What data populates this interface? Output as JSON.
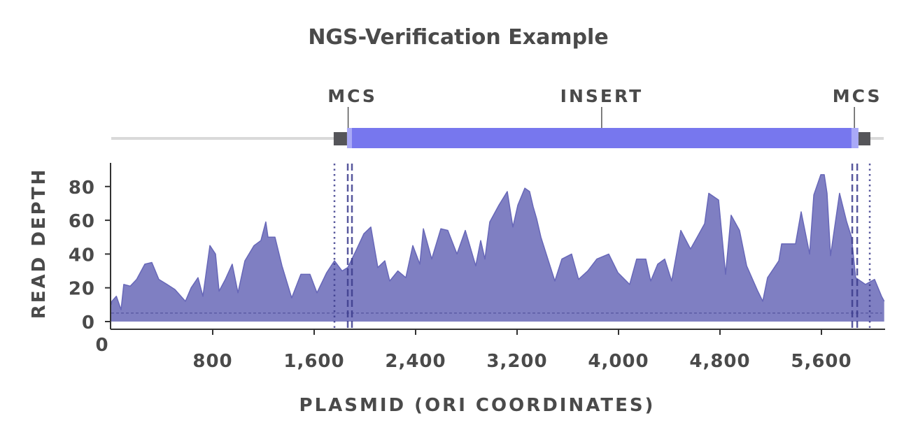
{
  "title": "NGS-Verification Example",
  "colors": {
    "text": "#4a4a4a",
    "insert": "#7777ee",
    "insert_edge": "#a9a9f7",
    "mcs_box": "#555559",
    "backbone": "#d9d9d9",
    "coverage_fill": "#7f7fc2",
    "coverage_line": "#6767b8",
    "marker": "#3c3c8c",
    "axis": "#333333"
  },
  "plasmid_map": {
    "features": [
      {
        "name": "MCS",
        "label": "MCS",
        "start": 1754,
        "end": 1859,
        "label_anchor_bp": 1868
      },
      {
        "name": "INSERT",
        "label": "INSERT",
        "start": 1898,
        "end": 5837,
        "label_anchor_bp": 3867
      },
      {
        "name": "MCS",
        "label": "MCS",
        "start": 5892,
        "end": 5986,
        "label_anchor_bp": 5860
      }
    ],
    "insert_edges": [
      [
        1859,
        1898
      ],
      [
        5837,
        5892
      ]
    ]
  },
  "chart_data": {
    "type": "area",
    "title": "NGS-Verification Example",
    "xlabel": "PLASMID (ORI COORDINATES)",
    "ylabel": "READ DEPTH",
    "xlim": [
      0,
      6100
    ],
    "ylim": [
      0,
      90
    ],
    "x_ticks": [
      0,
      800,
      1600,
      2400,
      3200,
      4000,
      4800,
      5600
    ],
    "x_tick_labels": [
      "0",
      "800",
      "1,600",
      "2,400",
      "3,200",
      "4,000",
      "4,800",
      "5,600"
    ],
    "y_ticks": [
      0,
      20,
      40,
      60,
      80
    ],
    "y_tick_labels": [
      "0",
      "20",
      "40",
      "60",
      "80"
    ],
    "threshold_line": 5,
    "vertical_markers": [
      {
        "x": 1760,
        "style": "dotted"
      },
      {
        "x": 1865,
        "style": "dashed"
      },
      {
        "x": 1898,
        "style": "dashed"
      },
      {
        "x": 5843,
        "style": "dashed"
      },
      {
        "x": 5882,
        "style": "dashed"
      },
      {
        "x": 5981,
        "style": "dotted"
      }
    ],
    "grid": false,
    "legend": null,
    "x": [
      0,
      5,
      40,
      77,
      99,
      150,
      200,
      265,
      320,
      375,
      440,
      502,
      585,
      630,
      684,
      723,
      778,
      822,
      850,
      900,
      954,
      999,
      1054,
      1126,
      1180,
      1219,
      1236,
      1291,
      1346,
      1423,
      1495,
      1567,
      1622,
      1699,
      1760,
      1820,
      1865,
      1930,
      1992,
      2047,
      2102,
      2157,
      2196,
      2260,
      2323,
      2378,
      2433,
      2461,
      2527,
      2599,
      2654,
      2726,
      2792,
      2874,
      2913,
      2946,
      2985,
      3057,
      3123,
      3167,
      3206,
      3261,
      3299,
      3327,
      3354,
      3388,
      3443,
      3498,
      3553,
      3630,
      3685,
      3757,
      3829,
      3923,
      3995,
      4088,
      4143,
      4215,
      4254,
      4309,
      4364,
      4419,
      4491,
      4568,
      4620,
      4679,
      4712,
      4789,
      4844,
      4888,
      4954,
      5010,
      5098,
      5137,
      5175,
      5264,
      5286,
      5396,
      5440,
      5507,
      5540,
      5595,
      5622,
      5644,
      5672,
      5743,
      5799,
      5837,
      5870,
      5947,
      6019,
      6074,
      6095
    ],
    "values": [
      10,
      12,
      15,
      7,
      22,
      21,
      25,
      34,
      35,
      25,
      22,
      19,
      12,
      20,
      26,
      15,
      45,
      40,
      18,
      25,
      34,
      17,
      36,
      45,
      48,
      59,
      50,
      50,
      33,
      14,
      28,
      28,
      17,
      29,
      36,
      30,
      32,
      42,
      52,
      56,
      32,
      36,
      24,
      30,
      26,
      45,
      34,
      55,
      37,
      55,
      54,
      40,
      54,
      33,
      48,
      37,
      59,
      69,
      77,
      56,
      69,
      79,
      77,
      68,
      61,
      50,
      37,
      24,
      37,
      40,
      25,
      30,
      37,
      40,
      29,
      22,
      37,
      37,
      24,
      34,
      37,
      24,
      54,
      43,
      50,
      58,
      76,
      72,
      28,
      63,
      54,
      33,
      18,
      12,
      26,
      36,
      46,
      46,
      65,
      40,
      75,
      87,
      87,
      76,
      39,
      76,
      59,
      50,
      26,
      22,
      25,
      15,
      12
    ]
  }
}
